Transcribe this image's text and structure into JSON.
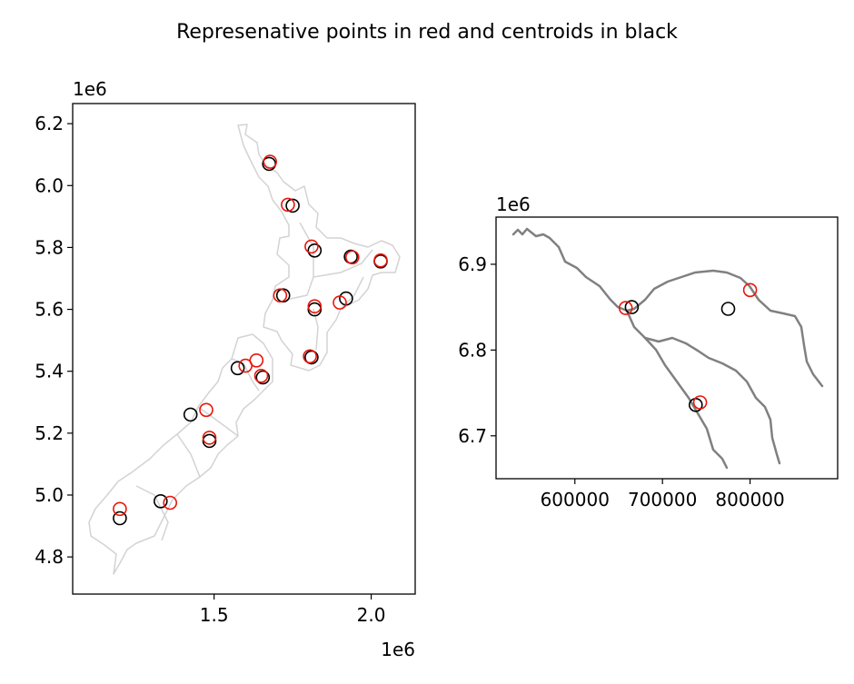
{
  "title": "Represenative points in red and centroids in black",
  "colors": {
    "representative": "#e8160b",
    "centroid": "#000000",
    "nz_outline": "#d3d3d3",
    "rivers": "#808080",
    "frame": "#000000"
  },
  "chart_data": [
    {
      "type": "scatter",
      "panel": "left",
      "xlim": [
        1.05,
        2.14
      ],
      "ylim": [
        4.68,
        6.265
      ],
      "x_offset_label": "1e6",
      "y_offset_label": "1e6",
      "x_ticks": [
        1.5,
        2.0
      ],
      "x_tick_labels": [
        "1.5",
        "2.0"
      ],
      "y_ticks": [
        4.8,
        5.0,
        5.2,
        5.4,
        5.6,
        5.8,
        6.0,
        6.2
      ],
      "y_tick_labels": [
        "4.8",
        "5.0",
        "5.2",
        "5.4",
        "5.6",
        "5.8",
        "6.0",
        "6.2"
      ],
      "background_layer": "New Zealand regions (light grey outlines)",
      "series": [
        {
          "role": "centroid",
          "points": [
            [
              1.675,
              6.07
            ],
            [
              1.75,
              5.935
            ],
            [
              1.82,
              5.79
            ],
            [
              1.935,
              5.77
            ],
            [
              2.03,
              5.755
            ],
            [
              1.72,
              5.645
            ],
            [
              1.82,
              5.6
            ],
            [
              1.92,
              5.635
            ],
            [
              1.81,
              5.445
            ],
            [
              1.575,
              5.41
            ],
            [
              1.655,
              5.38
            ],
            [
              1.425,
              5.26
            ],
            [
              1.485,
              5.175
            ],
            [
              1.33,
              4.98
            ],
            [
              1.2,
              4.925
            ]
          ]
        },
        {
          "role": "representative",
          "points": [
            [
              1.678,
              6.077
            ],
            [
              1.735,
              5.938
            ],
            [
              1.81,
              5.803
            ],
            [
              1.94,
              5.768
            ],
            [
              2.03,
              5.758
            ],
            [
              1.71,
              5.645
            ],
            [
              1.82,
              5.61
            ],
            [
              1.9,
              5.622
            ],
            [
              1.805,
              5.448
            ],
            [
              1.6,
              5.418
            ],
            [
              1.635,
              5.435
            ],
            [
              1.65,
              5.385
            ],
            [
              1.475,
              5.275
            ],
            [
              1.485,
              5.185
            ],
            [
              1.36,
              4.975
            ],
            [
              1.2,
              4.955
            ]
          ]
        }
      ]
    },
    {
      "type": "scatter",
      "panel": "right",
      "xlim": [
        510000,
        900000
      ],
      "ylim": [
        6650000,
        6955000
      ],
      "y_offset_label": "1e6",
      "x_ticks": [
        600000,
        700000,
        800000
      ],
      "x_tick_labels": [
        "600000",
        "700000",
        "800000"
      ],
      "y_ticks": [
        6700000,
        6800000,
        6900000
      ],
      "y_tick_labels": [
        "6.7",
        "6.8",
        "6.9"
      ],
      "background_layer": "river lines (grey)",
      "series": [
        {
          "role": "centroid",
          "points": [
            [
              665000,
              6850000
            ],
            [
              775000,
              6848000
            ],
            [
              738000,
              6736000
            ]
          ]
        },
        {
          "role": "representative",
          "points": [
            [
              658000,
              6849000
            ],
            [
              800000,
              6870000
            ],
            [
              743000,
              6739000
            ]
          ]
        }
      ]
    }
  ]
}
